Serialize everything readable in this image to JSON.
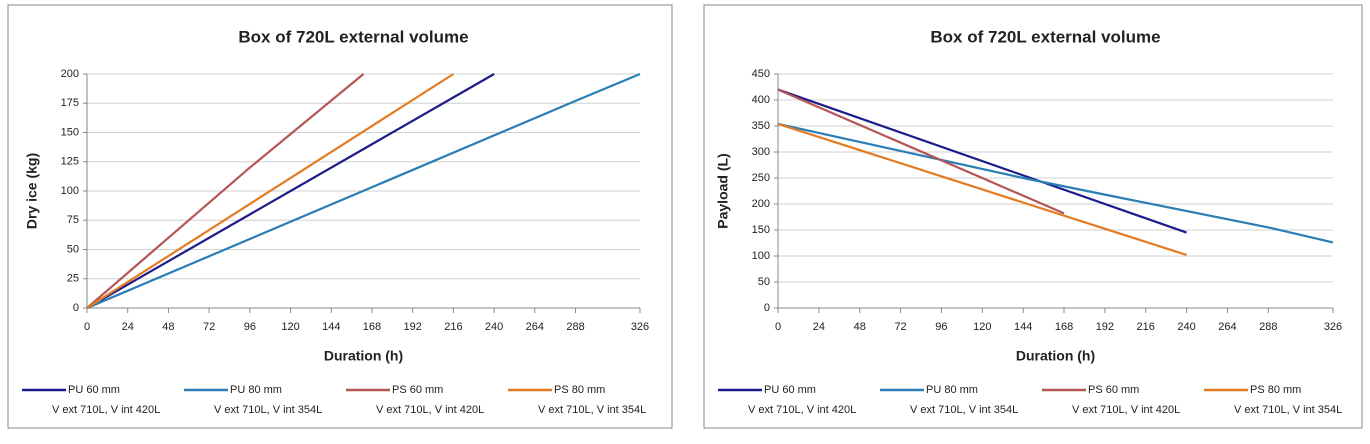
{
  "chart_data": [
    {
      "type": "line",
      "title": "Box of 720L external volume",
      "xlabel": "Duration (h)",
      "ylabel": "Dry ice (kg)",
      "xlim": [
        0,
        326
      ],
      "xticks": [
        0,
        24,
        48,
        72,
        96,
        120,
        144,
        168,
        192,
        216,
        240,
        264,
        288,
        326
      ],
      "ylim": [
        0,
        200
      ],
      "yticks": [
        0,
        25,
        50,
        75,
        100,
        125,
        150,
        175,
        200
      ],
      "grid": true,
      "series": [
        {
          "name": "PU 60 mm",
          "description": "V ext 710L, V int 420L",
          "color": "#1c1c8a",
          "x": [
            0,
            240
          ],
          "values": [
            0,
            200
          ]
        },
        {
          "name": "PU 80 mm",
          "description": "V ext 710L, V int 354L",
          "color": "#2a7db5",
          "x": [
            0,
            288,
            326
          ],
          "values": [
            0,
            177,
            200
          ]
        },
        {
          "name": "PS 60 mm",
          "description": "V ext 710L, V int 420L",
          "color": "#b55656",
          "x": [
            0,
            96,
            163
          ],
          "values": [
            0,
            120,
            200
          ]
        },
        {
          "name": "PS 80 mm",
          "description": "V ext 710L, V int 354L",
          "color": "#e37b22",
          "x": [
            0,
            216
          ],
          "values": [
            0,
            200
          ]
        }
      ]
    },
    {
      "type": "line",
      "title": "Box of 720L external volume",
      "xlabel": "Duration (h)",
      "ylabel": "Payload (L)",
      "xlim": [
        0,
        326
      ],
      "xticks": [
        0,
        24,
        48,
        72,
        96,
        120,
        144,
        168,
        192,
        216,
        240,
        264,
        288,
        326
      ],
      "ylim": [
        0,
        450
      ],
      "yticks": [
        0,
        50,
        100,
        150,
        200,
        250,
        300,
        350,
        400,
        450
      ],
      "grid": true,
      "series": [
        {
          "name": "PU 60 mm",
          "description": "V ext 710L, V int 420L",
          "color": "#1c1c8a",
          "x": [
            0,
            240
          ],
          "values": [
            420,
            145
          ]
        },
        {
          "name": "PU 80 mm",
          "description": "V ext 710L, V int 354L",
          "color": "#2a7db5",
          "x": [
            0,
            144,
            192,
            288,
            326
          ],
          "values": [
            354,
            250,
            218,
            155,
            126
          ]
        },
        {
          "name": "PS 60 mm",
          "description": "V ext 710L, V int 420L",
          "color": "#b55656",
          "x": [
            0,
            168
          ],
          "values": [
            420,
            182
          ]
        },
        {
          "name": "PS 80 mm",
          "description": "V ext 710L, V int 354L",
          "color": "#e37b22",
          "x": [
            0,
            240
          ],
          "values": [
            354,
            102
          ]
        }
      ]
    }
  ]
}
